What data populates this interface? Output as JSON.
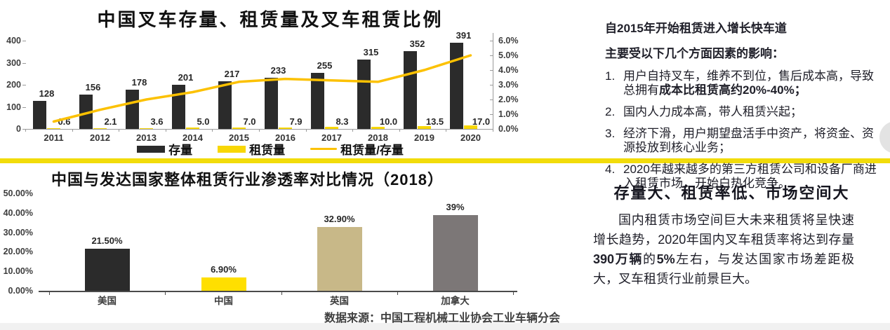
{
  "chart_data": [
    {
      "id": "forklift-stock-rental",
      "type": "bar",
      "subtype": "bar+line combo, dual axis",
      "title": "中国叉车存量、租赁量及叉车租赁比例",
      "categories": [
        "2011",
        "2012",
        "2013",
        "2014",
        "2015",
        "2016",
        "2017",
        "2018",
        "2019",
        "2020"
      ],
      "series": [
        {
          "name": "存量",
          "type": "bar",
          "axis": "left",
          "color": "#2b2b2b",
          "values": [
            128,
            156,
            178,
            201,
            217,
            233,
            255,
            315,
            352,
            391
          ],
          "labels": [
            "128",
            "156",
            "178",
            "201",
            "217",
            "233",
            "255",
            "315",
            "352",
            "391"
          ]
        },
        {
          "name": "租赁量",
          "type": "bar",
          "axis": "left",
          "color": "#f8d706",
          "values": [
            0.6,
            2.1,
            3.6,
            5.0,
            7.0,
            7.9,
            8.3,
            10.0,
            13.5,
            17.0
          ],
          "labels": [
            "0.6",
            "2.1",
            "3.6",
            "5.0",
            "7.0",
            "7.9",
            "8.3",
            "10.0",
            "13.5",
            "17.0"
          ]
        },
        {
          "name": "租赁量/存量",
          "type": "line",
          "axis": "right",
          "color": "#fcc101",
          "values_pct": [
            0.5,
            1.3,
            2.0,
            2.5,
            3.2,
            3.4,
            3.3,
            3.2,
            4.0,
            5.0
          ]
        }
      ],
      "left_axis": {
        "min": 0,
        "max": 400,
        "ticks": [
          0,
          100,
          200,
          300,
          400
        ]
      },
      "right_axis": {
        "min": 0,
        "max": 6,
        "ticks": [
          "0.0%",
          "1.0%",
          "2.0%",
          "3.0%",
          "4.0%",
          "5.0%",
          "6.0%"
        ]
      },
      "legend": [
        {
          "label": "存量",
          "swatch": "bar",
          "color": "#2b2b2b"
        },
        {
          "label": "租赁量",
          "swatch": "bar",
          "color": "#f8d706"
        },
        {
          "label": "租赁量/存量",
          "swatch": "line",
          "color": "#fcc101"
        }
      ],
      "grid": false,
      "legend_position": "bottom"
    },
    {
      "id": "penetration-comparison-2018",
      "type": "bar",
      "title": "中国与发达国家整体租赁行业渗透率对比情况（2018）",
      "categories": [
        "美国",
        "中国",
        "英国",
        "加拿大"
      ],
      "values": [
        21.5,
        6.9,
        32.9,
        39
      ],
      "labels": [
        "21.50%",
        "6.90%",
        "32.90%",
        "39%"
      ],
      "colors": [
        "#2b2b2b",
        "#ffdf00",
        "#c8b888",
        "#7c7777"
      ],
      "ylim": [
        0,
        50
      ],
      "y_ticks": [
        "0.00%",
        "10.00%",
        "20.00%",
        "30.00%",
        "40.00%",
        "50.00%"
      ],
      "grid": false,
      "source": "数据来源：中国工程机械工业协会工业车辆分会"
    }
  ],
  "right_top_panel": {
    "heading": "自2015年开始租赁进入增长快车道",
    "subheading": "主要受以下几个方面因素的影响：",
    "items": [
      {
        "num": "1.",
        "runs": [
          {
            "t": "用户自持叉车，维养不到位，售后成本高，导致总拥有",
            "b": false
          },
          {
            "t": "成本比租赁高约20%-40%；",
            "b": true
          }
        ]
      },
      {
        "num": "2.",
        "runs": [
          {
            "t": "国内人力成本高，带人租赁兴起；",
            "b": false
          }
        ]
      },
      {
        "num": "3.",
        "runs": [
          {
            "t": "经济下滑，用户期望盘活手中资产，将资金、资源投放到核心业务；",
            "b": false
          }
        ]
      },
      {
        "num": "4.",
        "runs": [
          {
            "t": "2020年越来越多的第三方租赁公司和设备厂商进入租赁市场，开始白热化竞争。",
            "b": false
          }
        ]
      }
    ]
  },
  "right_bottom_panel": {
    "heading": "存量大、租赁率低、市场空间大",
    "paragraph_runs": [
      {
        "t": "国内租赁市场空间巨大未来租赁将呈快速增长趋势，2020年国内叉车租赁率将达到存量",
        "b": false
      },
      {
        "t": "390万辆",
        "b": true
      },
      {
        "t": "的",
        "b": false
      },
      {
        "t": "5%",
        "b": true
      },
      {
        "t": "左右，与发达国家市场差距极大，叉车租赁行业前景巨大。",
        "b": false
      }
    ]
  },
  "decorations": {
    "divider_color": "#f2dc0b",
    "bottom_strip_color": "#f1f1f1",
    "side_circle_color": "#e3e3e3"
  }
}
